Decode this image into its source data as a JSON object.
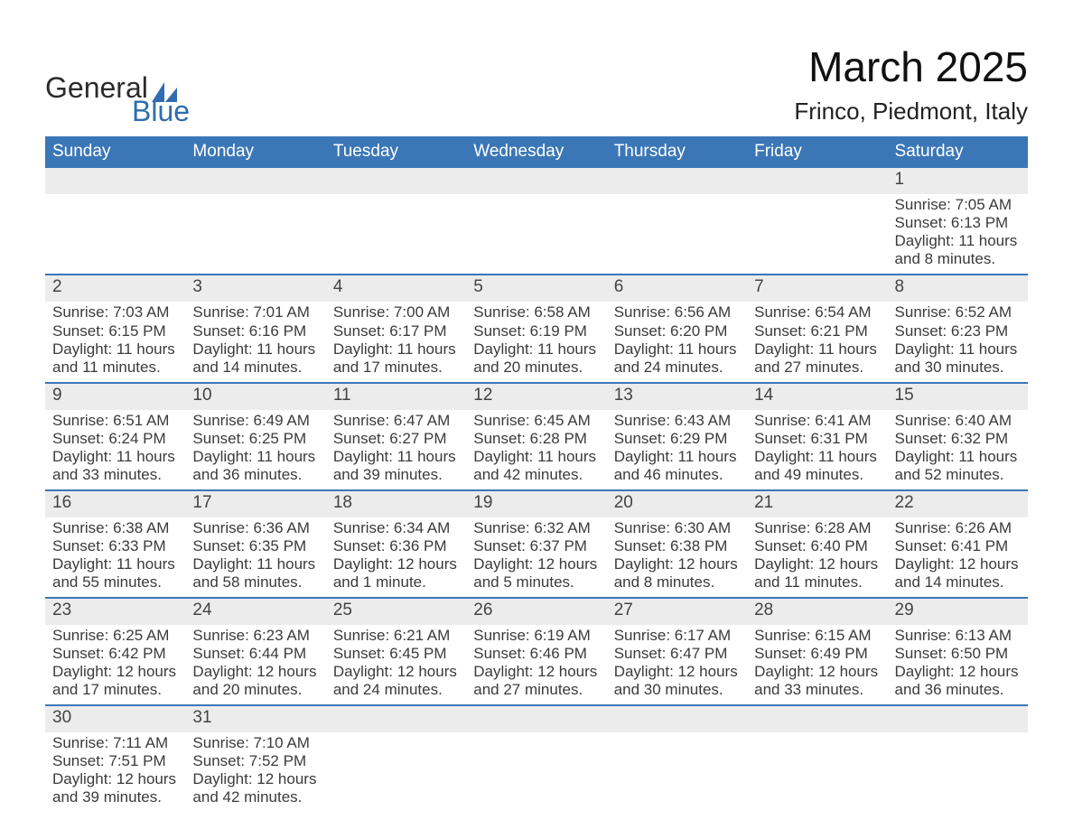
{
  "logo": {
    "text1": "General",
    "text2": "Blue",
    "accent_color": "#2f6db0",
    "text_color": "#2b2b2b"
  },
  "title": "March 2025",
  "subtitle": "Frinco, Piedmont, Italy",
  "colors": {
    "header_bg": "#3b77b7",
    "header_text": "#ffffff",
    "daynum_bg": "#ececec",
    "row_border": "#3b77b7",
    "body_text": "#3b3b3b"
  },
  "weekdays": [
    "Sunday",
    "Monday",
    "Tuesday",
    "Wednesday",
    "Thursday",
    "Friday",
    "Saturday"
  ],
  "weeks": [
    [
      null,
      null,
      null,
      null,
      null,
      null,
      {
        "n": "1",
        "sr": "Sunrise: 7:05 AM",
        "ss": "Sunset: 6:13 PM",
        "d1": "Daylight: 11 hours",
        "d2": "and 8 minutes."
      }
    ],
    [
      {
        "n": "2",
        "sr": "Sunrise: 7:03 AM",
        "ss": "Sunset: 6:15 PM",
        "d1": "Daylight: 11 hours",
        "d2": "and 11 minutes."
      },
      {
        "n": "3",
        "sr": "Sunrise: 7:01 AM",
        "ss": "Sunset: 6:16 PM",
        "d1": "Daylight: 11 hours",
        "d2": "and 14 minutes."
      },
      {
        "n": "4",
        "sr": "Sunrise: 7:00 AM",
        "ss": "Sunset: 6:17 PM",
        "d1": "Daylight: 11 hours",
        "d2": "and 17 minutes."
      },
      {
        "n": "5",
        "sr": "Sunrise: 6:58 AM",
        "ss": "Sunset: 6:19 PM",
        "d1": "Daylight: 11 hours",
        "d2": "and 20 minutes."
      },
      {
        "n": "6",
        "sr": "Sunrise: 6:56 AM",
        "ss": "Sunset: 6:20 PM",
        "d1": "Daylight: 11 hours",
        "d2": "and 24 minutes."
      },
      {
        "n": "7",
        "sr": "Sunrise: 6:54 AM",
        "ss": "Sunset: 6:21 PM",
        "d1": "Daylight: 11 hours",
        "d2": "and 27 minutes."
      },
      {
        "n": "8",
        "sr": "Sunrise: 6:52 AM",
        "ss": "Sunset: 6:23 PM",
        "d1": "Daylight: 11 hours",
        "d2": "and 30 minutes."
      }
    ],
    [
      {
        "n": "9",
        "sr": "Sunrise: 6:51 AM",
        "ss": "Sunset: 6:24 PM",
        "d1": "Daylight: 11 hours",
        "d2": "and 33 minutes."
      },
      {
        "n": "10",
        "sr": "Sunrise: 6:49 AM",
        "ss": "Sunset: 6:25 PM",
        "d1": "Daylight: 11 hours",
        "d2": "and 36 minutes."
      },
      {
        "n": "11",
        "sr": "Sunrise: 6:47 AM",
        "ss": "Sunset: 6:27 PM",
        "d1": "Daylight: 11 hours",
        "d2": "and 39 minutes."
      },
      {
        "n": "12",
        "sr": "Sunrise: 6:45 AM",
        "ss": "Sunset: 6:28 PM",
        "d1": "Daylight: 11 hours",
        "d2": "and 42 minutes."
      },
      {
        "n": "13",
        "sr": "Sunrise: 6:43 AM",
        "ss": "Sunset: 6:29 PM",
        "d1": "Daylight: 11 hours",
        "d2": "and 46 minutes."
      },
      {
        "n": "14",
        "sr": "Sunrise: 6:41 AM",
        "ss": "Sunset: 6:31 PM",
        "d1": "Daylight: 11 hours",
        "d2": "and 49 minutes."
      },
      {
        "n": "15",
        "sr": "Sunrise: 6:40 AM",
        "ss": "Sunset: 6:32 PM",
        "d1": "Daylight: 11 hours",
        "d2": "and 52 minutes."
      }
    ],
    [
      {
        "n": "16",
        "sr": "Sunrise: 6:38 AM",
        "ss": "Sunset: 6:33 PM",
        "d1": "Daylight: 11 hours",
        "d2": "and 55 minutes."
      },
      {
        "n": "17",
        "sr": "Sunrise: 6:36 AM",
        "ss": "Sunset: 6:35 PM",
        "d1": "Daylight: 11 hours",
        "d2": "and 58 minutes."
      },
      {
        "n": "18",
        "sr": "Sunrise: 6:34 AM",
        "ss": "Sunset: 6:36 PM",
        "d1": "Daylight: 12 hours",
        "d2": "and 1 minute."
      },
      {
        "n": "19",
        "sr": "Sunrise: 6:32 AM",
        "ss": "Sunset: 6:37 PM",
        "d1": "Daylight: 12 hours",
        "d2": "and 5 minutes."
      },
      {
        "n": "20",
        "sr": "Sunrise: 6:30 AM",
        "ss": "Sunset: 6:38 PM",
        "d1": "Daylight: 12 hours",
        "d2": "and 8 minutes."
      },
      {
        "n": "21",
        "sr": "Sunrise: 6:28 AM",
        "ss": "Sunset: 6:40 PM",
        "d1": "Daylight: 12 hours",
        "d2": "and 11 minutes."
      },
      {
        "n": "22",
        "sr": "Sunrise: 6:26 AM",
        "ss": "Sunset: 6:41 PM",
        "d1": "Daylight: 12 hours",
        "d2": "and 14 minutes."
      }
    ],
    [
      {
        "n": "23",
        "sr": "Sunrise: 6:25 AM",
        "ss": "Sunset: 6:42 PM",
        "d1": "Daylight: 12 hours",
        "d2": "and 17 minutes."
      },
      {
        "n": "24",
        "sr": "Sunrise: 6:23 AM",
        "ss": "Sunset: 6:44 PM",
        "d1": "Daylight: 12 hours",
        "d2": "and 20 minutes."
      },
      {
        "n": "25",
        "sr": "Sunrise: 6:21 AM",
        "ss": "Sunset: 6:45 PM",
        "d1": "Daylight: 12 hours",
        "d2": "and 24 minutes."
      },
      {
        "n": "26",
        "sr": "Sunrise: 6:19 AM",
        "ss": "Sunset: 6:46 PM",
        "d1": "Daylight: 12 hours",
        "d2": "and 27 minutes."
      },
      {
        "n": "27",
        "sr": "Sunrise: 6:17 AM",
        "ss": "Sunset: 6:47 PM",
        "d1": "Daylight: 12 hours",
        "d2": "and 30 minutes."
      },
      {
        "n": "28",
        "sr": "Sunrise: 6:15 AM",
        "ss": "Sunset: 6:49 PM",
        "d1": "Daylight: 12 hours",
        "d2": "and 33 minutes."
      },
      {
        "n": "29",
        "sr": "Sunrise: 6:13 AM",
        "ss": "Sunset: 6:50 PM",
        "d1": "Daylight: 12 hours",
        "d2": "and 36 minutes."
      }
    ],
    [
      {
        "n": "30",
        "sr": "Sunrise: 7:11 AM",
        "ss": "Sunset: 7:51 PM",
        "d1": "Daylight: 12 hours",
        "d2": "and 39 minutes."
      },
      {
        "n": "31",
        "sr": "Sunrise: 7:10 AM",
        "ss": "Sunset: 7:52 PM",
        "d1": "Daylight: 12 hours",
        "d2": "and 42 minutes."
      },
      null,
      null,
      null,
      null,
      null
    ]
  ]
}
